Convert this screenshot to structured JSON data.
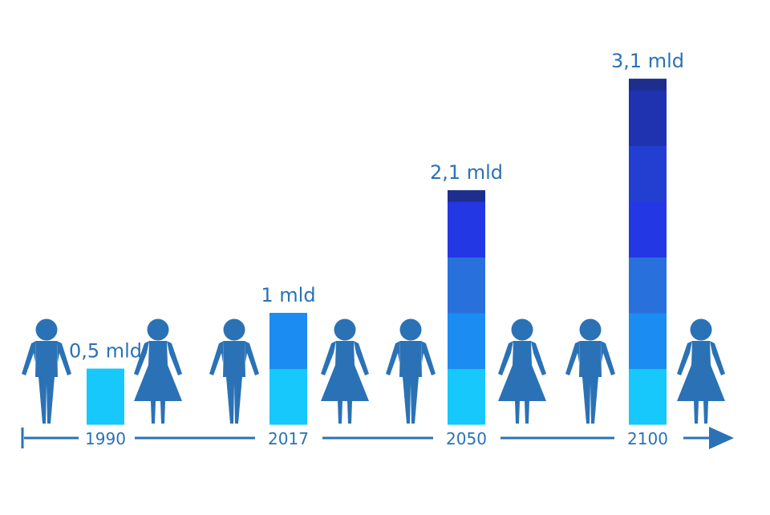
{
  "chart_data": {
    "type": "bar",
    "categories": [
      "1990",
      "2017",
      "2050",
      "2100"
    ],
    "values": [
      0.5,
      1,
      2.1,
      3.1
    ],
    "data_labels": [
      "0,5 mld",
      "1 mld",
      "2,1 mld",
      "3,1 mld"
    ],
    "title": "",
    "xlabel": "",
    "ylabel": "",
    "ylim": [
      0,
      3.1
    ],
    "grid": false,
    "legend": "none"
  },
  "colors": {
    "figure": "#2a72b5",
    "axis": "#2a72b5",
    "text": "#2a72b5",
    "segments": [
      "#16c8fb",
      "#1b8cf2",
      "#2871dc",
      "#2437e4",
      "#223fd1",
      "#1f33b0",
      "#1d2e8d"
    ]
  },
  "icons": [
    "man-icon",
    "woman-icon",
    "man-icon",
    "woman-icon",
    "man-icon",
    "woman-icon",
    "man-icon",
    "woman-icon"
  ]
}
